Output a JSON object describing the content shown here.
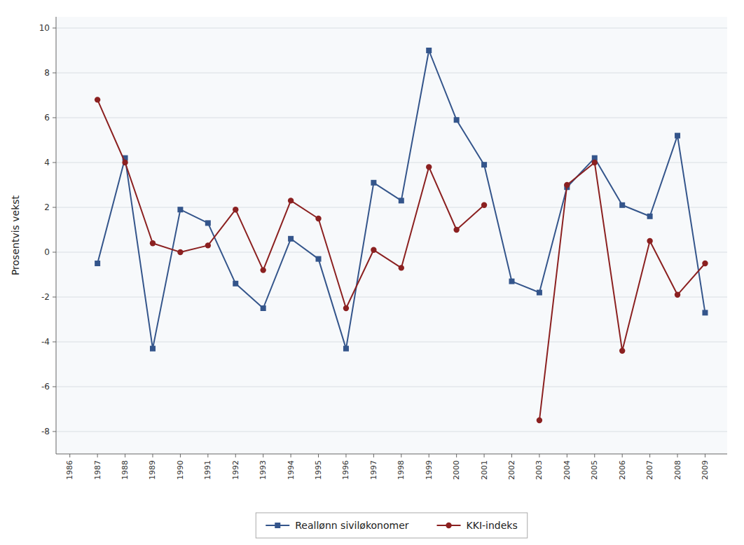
{
  "chart_data": {
    "type": "line",
    "x": [
      1986,
      1987,
      1988,
      1989,
      1990,
      1991,
      1992,
      1993,
      1994,
      1995,
      1996,
      1997,
      1998,
      1999,
      2000,
      2001,
      2002,
      2003,
      2004,
      2005,
      2006,
      2007,
      2008,
      2009
    ],
    "series": [
      {
        "name": "Reallønn siviløkonomer",
        "color": "#34558B",
        "marker": "square",
        "values": [
          null,
          -0.5,
          4.2,
          -4.3,
          1.9,
          1.3,
          -1.4,
          -2.5,
          0.6,
          -0.3,
          -4.3,
          3.1,
          2.3,
          9.0,
          5.9,
          3.9,
          -1.3,
          -1.8,
          2.9,
          4.2,
          2.1,
          1.6,
          5.2,
          -2.7
        ]
      },
      {
        "name": "KKI-indeks",
        "color": "#8B2020",
        "marker": "circle",
        "values": [
          null,
          6.8,
          4.0,
          0.4,
          0.0,
          0.3,
          1.9,
          -0.8,
          2.3,
          1.5,
          -2.5,
          0.1,
          -0.7,
          3.8,
          1.0,
          2.1,
          null,
          -7.5,
          3.0,
          4.0,
          -4.4,
          0.5,
          -1.9,
          -0.5
        ]
      }
    ],
    "y_label": "Prosentvis vekst",
    "xlim": [
      1985.5,
      2009.8
    ],
    "xticks": [
      1986,
      1987,
      1988,
      1989,
      1990,
      1991,
      1992,
      1993,
      1994,
      1995,
      1996,
      1997,
      1998,
      1999,
      2000,
      2001,
      2002,
      2003,
      2004,
      2005,
      2006,
      2007,
      2008,
      2009
    ],
    "ylim": [
      -9,
      10.5
    ],
    "yticks": [
      -8,
      -6,
      -4,
      -2,
      0,
      2,
      4,
      6,
      8,
      10
    ],
    "grid": true,
    "legend": "bottom"
  }
}
